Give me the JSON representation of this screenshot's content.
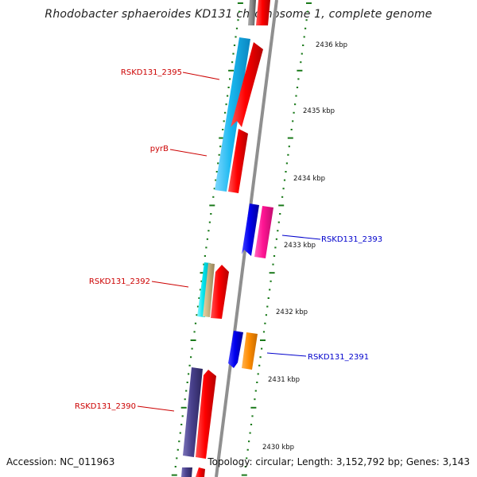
{
  "title": "Rhodobacter sphaeroides KD131 chromosome 1, complete genome",
  "footer": {
    "accession": "Accession: NC_011963",
    "topology": "Topology: circular; Length: 3,152,792 bp; Genes: 3,143"
  },
  "colors": {
    "backbone": "#8c8c8c",
    "tick": "#1a7a1a",
    "label_forward": "#cc0000",
    "label_reverse": "#0000cc"
  },
  "scale_labels": [
    "2436 kbp",
    "2435 kbp",
    "2434 kbp",
    "2433 kbp",
    "2432 kbp",
    "2431 kbp",
    "2430 kbp"
  ],
  "gene_labels": [
    {
      "text": "RSKD131_2395",
      "color": "#cc0000"
    },
    {
      "text": "pyrB",
      "color": "#cc0000"
    },
    {
      "text": "RSKD131_2393",
      "color": "#0000cc"
    },
    {
      "text": "RSKD131_2392",
      "color": "#cc0000"
    },
    {
      "text": "RSKD131_2391",
      "color": "#0000cc"
    },
    {
      "text": "RSKD131_2390",
      "color": "#cc0000"
    }
  ],
  "feature_colors": [
    "#ff0000",
    "#1ab8f0",
    "#0000ee",
    "#ff1493",
    "#00e5ee",
    "#c8b482",
    "#ff8c00",
    "#48408c"
  ]
}
